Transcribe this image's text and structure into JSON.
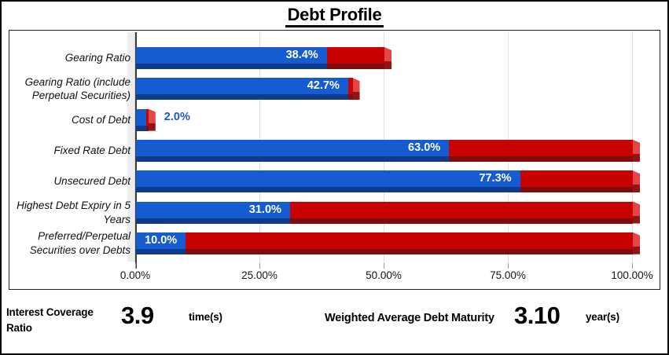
{
  "chart_data": {
    "type": "bar",
    "orientation": "horizontal",
    "title": "Debt Profile",
    "xlabel": "",
    "ylabel": "",
    "xlim": [
      0,
      100
    ],
    "x_ticks": [
      "0.00%",
      "25.00%",
      "50.00%",
      "75.00%",
      "100.00%"
    ],
    "x_tick_values": [
      0,
      25,
      50,
      75,
      100
    ],
    "grid": true,
    "legend_position": "none",
    "colors": {
      "bar_blue": "#155bd1",
      "bar_blue_shadow": "#0e3c8b",
      "bar_red": "#c80101",
      "bar_red_shadow": "#7e0d0d",
      "bar_red_side": "#e64545",
      "axis_wall_gray": "#ededed",
      "gridline": "#e0e0e0",
      "value_label_outside": "#1d57c9"
    },
    "rows": [
      {
        "label": "Gearing Ratio",
        "value": 38.4,
        "value_label": "38.4%",
        "red_extends_to": 50.0,
        "label_inside": true
      },
      {
        "label": "Gearing Ratio (include Perpetual Securities)",
        "value": 42.7,
        "value_label": "42.7%",
        "red_extends_to": 43.6,
        "label_inside": true
      },
      {
        "label": "Cost of Debt",
        "value": 2.0,
        "value_label": "2.0%",
        "red_extends_to": 2.5,
        "label_inside": false
      },
      {
        "label": "Fixed Rate Debt",
        "value": 63.0,
        "value_label": "63.0%",
        "red_extends_to": 100.0,
        "label_inside": true
      },
      {
        "label": "Unsecured Debt",
        "value": 77.3,
        "value_label": "77.3%",
        "red_extends_to": 100.0,
        "label_inside": true
      },
      {
        "label": "Highest Debt Expiry in 5 Years",
        "value": 31.0,
        "value_label": "31.0%",
        "red_extends_to": 100.0,
        "label_inside": true
      },
      {
        "label": "Preferred/Perpetual Securities over Debts",
        "value": 10.0,
        "value_label": "10.0%",
        "red_extends_to": 100.0,
        "label_inside": true
      }
    ]
  },
  "footer": {
    "icr_label": "Interest Coverage Ratio",
    "icr_value": "3.9",
    "icr_unit": "time(s)",
    "wadm_label": "Weighted Average Debt Maturity",
    "wadm_value": "3.10",
    "wadm_unit": "year(s)"
  }
}
